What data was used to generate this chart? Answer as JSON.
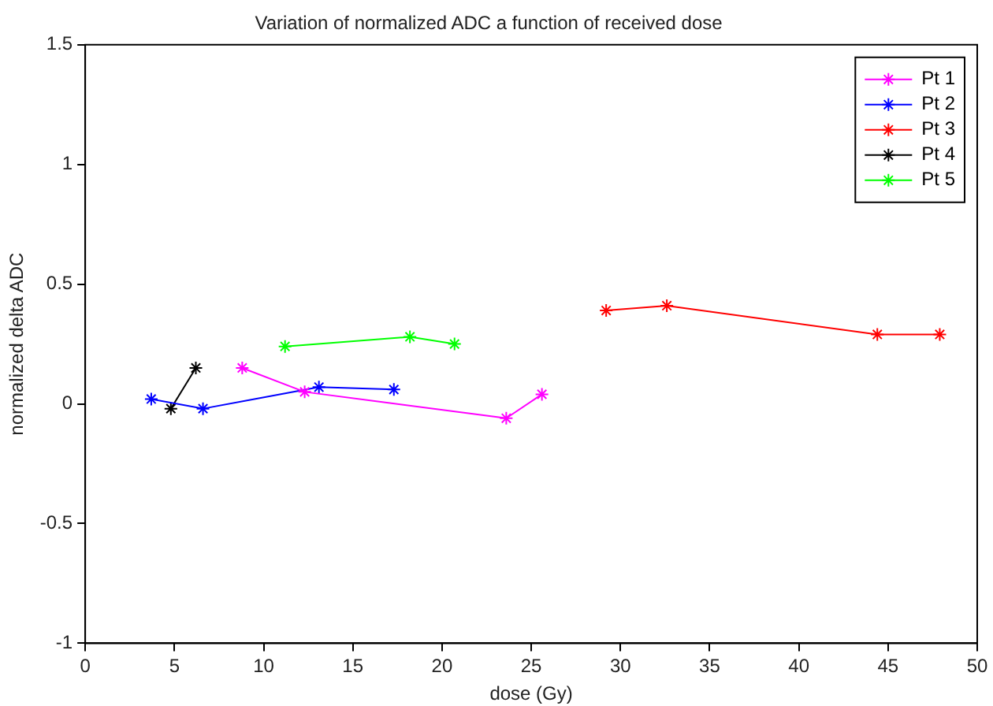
{
  "chart_data": {
    "type": "line",
    "title": "Variation of normalized ADC a function of received dose",
    "xlabel": "dose (Gy)",
    "ylabel": "normalized delta ADC",
    "series": [
      {
        "name": "Pt 1",
        "color": "#ff00ff",
        "x": [
          8.8,
          12.3,
          23.6,
          25.6
        ],
        "values": [
          0.15,
          0.05,
          -0.06,
          0.04
        ]
      },
      {
        "name": "Pt 2",
        "color": "#0000ff",
        "x": [
          3.7,
          6.6,
          13.1,
          17.3
        ],
        "values": [
          0.02,
          -0.02,
          0.07,
          0.06
        ]
      },
      {
        "name": "Pt 3",
        "color": "#ff0000",
        "x": [
          29.2,
          32.6,
          44.4,
          47.9
        ],
        "values": [
          0.39,
          0.41,
          0.29,
          0.29
        ]
      },
      {
        "name": "Pt 4",
        "color": "#000000",
        "x": [
          4.8,
          6.2
        ],
        "values": [
          -0.02,
          0.15
        ]
      },
      {
        "name": "Pt 5",
        "color": "#00ff00",
        "x": [
          11.2,
          18.2,
          20.7
        ],
        "values": [
          0.24,
          0.28,
          0.25
        ]
      }
    ],
    "xlim": [
      0,
      50
    ],
    "xticks": [
      0,
      5,
      10,
      15,
      20,
      25,
      30,
      35,
      40,
      45,
      50
    ],
    "ylim": [
      -1,
      1.5
    ],
    "yticks": [
      -1,
      -0.5,
      0,
      0.5,
      1,
      1.5
    ],
    "grid": false,
    "legend": "top right",
    "marker": "cross",
    "line_style": "solid"
  }
}
